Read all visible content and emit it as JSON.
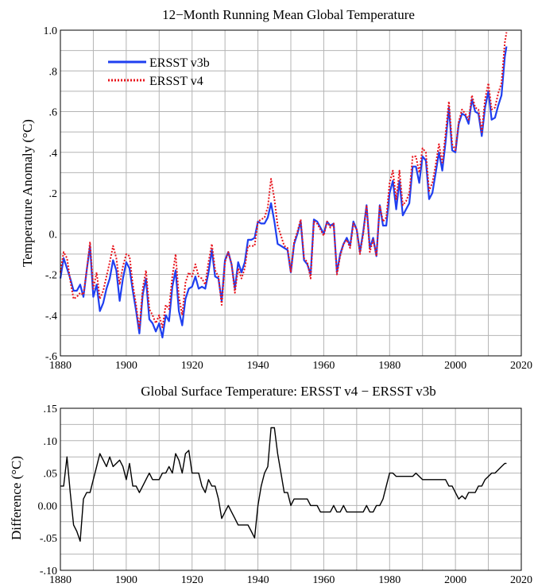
{
  "colors": {
    "v3b": "#1f3ff0",
    "v4": "#e8141c",
    "diff": "#000000",
    "grid": "#b4b4b4"
  },
  "chart_data": [
    {
      "type": "line",
      "title": "12−Month Running Mean Global Temperature",
      "xlabel": "",
      "ylabel": "Temperature Anomaly (°C)",
      "xlim": [
        1880,
        2020
      ],
      "ylim": [
        -0.6,
        1.0
      ],
      "xticks": [
        1880,
        1900,
        1920,
        1940,
        1960,
        1980,
        2000,
        2020
      ],
      "xtick_labels": [
        "1880",
        "1900",
        "1920",
        "1940",
        "1960",
        "1980",
        "2000",
        "2020"
      ],
      "yticks": [
        -0.6,
        -0.4,
        -0.2,
        0.0,
        0.2,
        0.4,
        0.6,
        0.8,
        1.0
      ],
      "ytick_labels": [
        "-.6",
        "-.4",
        "-.2",
        "0.",
        ".2",
        ".4",
        ".6",
        ".8",
        "1.0"
      ],
      "grid": true,
      "legend": "top-left",
      "series": [
        {
          "name": "ERSST v3b",
          "style": "solid",
          "x": [
            1880,
            1881,
            1882,
            1883,
            1884,
            1885,
            1886,
            1887,
            1888,
            1889,
            1890,
            1891,
            1892,
            1893,
            1894,
            1895,
            1896,
            1897,
            1898,
            1899,
            1900,
            1901,
            1902,
            1903,
            1904,
            1905,
            1906,
            1907,
            1908,
            1909,
            1910,
            1911,
            1912,
            1913,
            1914,
            1915,
            1916,
            1917,
            1918,
            1919,
            1920,
            1921,
            1922,
            1923,
            1924,
            1925,
            1926,
            1927,
            1928,
            1929,
            1930,
            1931,
            1932,
            1933,
            1934,
            1935,
            1936,
            1937,
            1938,
            1939,
            1940,
            1941,
            1942,
            1943,
            1944,
            1945,
            1946,
            1947,
            1948,
            1949,
            1950,
            1951,
            1952,
            1953,
            1954,
            1955,
            1956,
            1957,
            1958,
            1959,
            1960,
            1961,
            1962,
            1963,
            1964,
            1965,
            1966,
            1967,
            1968,
            1969,
            1970,
            1971,
            1972,
            1973,
            1974,
            1975,
            1976,
            1977,
            1978,
            1979,
            1980,
            1981,
            1982,
            1983,
            1984,
            1985,
            1986,
            1987,
            1988,
            1989,
            1990,
            1991,
            1992,
            1993,
            1994,
            1995,
            1996,
            1997,
            1998,
            1999,
            2000,
            2001,
            2002,
            2003,
            2004,
            2005,
            2006,
            2007,
            2008,
            2009,
            2010,
            2011,
            2012,
            2013,
            2014,
            2015,
            2015.5
          ],
          "values": [
            -0.22,
            -0.12,
            -0.17,
            -0.22,
            -0.28,
            -0.28,
            -0.25,
            -0.31,
            -0.18,
            -0.06,
            -0.31,
            -0.25,
            -0.38,
            -0.34,
            -0.27,
            -0.22,
            -0.13,
            -0.18,
            -0.33,
            -0.22,
            -0.14,
            -0.17,
            -0.28,
            -0.38,
            -0.49,
            -0.3,
            -0.22,
            -0.42,
            -0.44,
            -0.48,
            -0.44,
            -0.51,
            -0.4,
            -0.43,
            -0.26,
            -0.18,
            -0.38,
            -0.45,
            -0.32,
            -0.27,
            -0.26,
            -0.21,
            -0.27,
            -0.26,
            -0.27,
            -0.19,
            -0.08,
            -0.21,
            -0.22,
            -0.33,
            -0.13,
            -0.09,
            -0.15,
            -0.27,
            -0.14,
            -0.19,
            -0.14,
            -0.03,
            -0.03,
            -0.02,
            0.06,
            0.05,
            0.05,
            0.08,
            0.15,
            0.06,
            -0.05,
            -0.06,
            -0.07,
            -0.08,
            -0.19,
            -0.05,
            0.0,
            0.06,
            -0.13,
            -0.15,
            -0.2,
            0.07,
            0.06,
            0.03,
            0.0,
            0.06,
            0.04,
            0.05,
            -0.19,
            -0.1,
            -0.05,
            -0.02,
            -0.06,
            0.06,
            0.02,
            -0.09,
            0.01,
            0.14,
            -0.07,
            -0.02,
            -0.11,
            0.14,
            0.04,
            0.04,
            0.2,
            0.26,
            0.12,
            0.26,
            0.09,
            0.12,
            0.15,
            0.33,
            0.33,
            0.25,
            0.38,
            0.36,
            0.17,
            0.2,
            0.3,
            0.4,
            0.31,
            0.45,
            0.62,
            0.41,
            0.4,
            0.54,
            0.59,
            0.58,
            0.54,
            0.66,
            0.6,
            0.59,
            0.48,
            0.62,
            0.7,
            0.56,
            0.57,
            0.63,
            0.68,
            0.87,
            0.92
          ]
        },
        {
          "name": "ERSST v4",
          "style": "dotted",
          "x": [
            1880,
            1881,
            1882,
            1883,
            1884,
            1885,
            1886,
            1887,
            1888,
            1889,
            1890,
            1891,
            1892,
            1893,
            1894,
            1895,
            1896,
            1897,
            1898,
            1899,
            1900,
            1901,
            1902,
            1903,
            1904,
            1905,
            1906,
            1907,
            1908,
            1909,
            1910,
            1911,
            1912,
            1913,
            1914,
            1915,
            1916,
            1917,
            1918,
            1919,
            1920,
            1921,
            1922,
            1923,
            1924,
            1925,
            1926,
            1927,
            1928,
            1929,
            1930,
            1931,
            1932,
            1933,
            1934,
            1935,
            1936,
            1937,
            1938,
            1939,
            1940,
            1941,
            1942,
            1943,
            1944,
            1945,
            1946,
            1947,
            1948,
            1949,
            1950,
            1951,
            1952,
            1953,
            1954,
            1955,
            1956,
            1957,
            1958,
            1959,
            1960,
            1961,
            1962,
            1963,
            1964,
            1965,
            1966,
            1967,
            1968,
            1969,
            1970,
            1971,
            1972,
            1973,
            1974,
            1975,
            1976,
            1977,
            1978,
            1979,
            1980,
            1981,
            1982,
            1983,
            1984,
            1985,
            1986,
            1987,
            1988,
            1989,
            1990,
            1991,
            1992,
            1993,
            1994,
            1995,
            1996,
            1997,
            1998,
            1999,
            2000,
            2001,
            2002,
            2003,
            2004,
            2005,
            2006,
            2007,
            2008,
            2009,
            2010,
            2011,
            2012,
            2013,
            2014,
            2015,
            2015.5
          ],
          "values": [
            -0.19,
            -0.09,
            -0.12,
            -0.23,
            -0.32,
            -0.31,
            -0.29,
            -0.3,
            -0.18,
            -0.04,
            -0.27,
            -0.19,
            -0.32,
            -0.28,
            -0.21,
            -0.14,
            -0.06,
            -0.12,
            -0.25,
            -0.16,
            -0.1,
            -0.11,
            -0.25,
            -0.35,
            -0.47,
            -0.27,
            -0.18,
            -0.37,
            -0.4,
            -0.44,
            -0.4,
            -0.46,
            -0.35,
            -0.37,
            -0.21,
            -0.1,
            -0.31,
            -0.4,
            -0.24,
            -0.19,
            -0.21,
            -0.15,
            -0.21,
            -0.22,
            -0.25,
            -0.14,
            -0.05,
            -0.18,
            -0.21,
            -0.35,
            -0.14,
            -0.09,
            -0.15,
            -0.29,
            -0.17,
            -0.22,
            -0.17,
            -0.06,
            -0.06,
            -0.06,
            0.06,
            0.07,
            0.08,
            0.13,
            0.27,
            0.17,
            0.04,
            -0.01,
            -0.06,
            -0.07,
            -0.19,
            -0.04,
            0.01,
            0.07,
            -0.12,
            -0.14,
            -0.22,
            0.06,
            0.05,
            0.02,
            -0.01,
            0.06,
            0.03,
            0.05,
            -0.2,
            -0.11,
            -0.05,
            -0.03,
            -0.07,
            0.05,
            0.02,
            -0.1,
            0.0,
            0.14,
            -0.09,
            -0.03,
            -0.11,
            0.14,
            0.06,
            0.08,
            0.25,
            0.31,
            0.17,
            0.31,
            0.14,
            0.16,
            0.2,
            0.38,
            0.38,
            0.3,
            0.42,
            0.4,
            0.21,
            0.25,
            0.34,
            0.44,
            0.35,
            0.49,
            0.65,
            0.44,
            0.41,
            0.55,
            0.61,
            0.59,
            0.56,
            0.68,
            0.62,
            0.61,
            0.5,
            0.66,
            0.74,
            0.61,
            0.62,
            0.69,
            0.74,
            0.94,
            0.99
          ]
        }
      ]
    },
    {
      "type": "line",
      "title": "Global Surface Temperature: ERSST v4 − ERSST v3b",
      "xlabel": "",
      "ylabel": "Difference (°C)",
      "xlim": [
        1880,
        2020
      ],
      "ylim": [
        -0.1,
        0.15
      ],
      "xticks": [
        1880,
        1900,
        1920,
        1940,
        1960,
        1980,
        2000,
        2020
      ],
      "xtick_labels": [
        "1880",
        "1900",
        "1920",
        "1940",
        "1960",
        "1980",
        "2000",
        "2020"
      ],
      "yticks": [
        -0.1,
        -0.05,
        0.0,
        0.05,
        0.1,
        0.15
      ],
      "ytick_labels": [
        "-.10",
        "-.05",
        "0.00",
        ".05",
        ".10",
        ".15"
      ],
      "grid": true,
      "series": [
        {
          "style": "solid",
          "x": [
            1880,
            1881,
            1882,
            1883,
            1884,
            1885,
            1886,
            1887,
            1888,
            1889,
            1890,
            1891,
            1892,
            1893,
            1894,
            1895,
            1896,
            1897,
            1898,
            1899,
            1900,
            1901,
            1902,
            1903,
            1904,
            1905,
            1906,
            1907,
            1908,
            1909,
            1910,
            1911,
            1912,
            1913,
            1914,
            1915,
            1916,
            1917,
            1918,
            1919,
            1920,
            1921,
            1922,
            1923,
            1924,
            1925,
            1926,
            1927,
            1928,
            1929,
            1930,
            1931,
            1932,
            1933,
            1934,
            1935,
            1936,
            1937,
            1938,
            1939,
            1940,
            1941,
            1942,
            1943,
            1944,
            1945,
            1946,
            1947,
            1948,
            1949,
            1950,
            1951,
            1952,
            1953,
            1954,
            1955,
            1956,
            1957,
            1958,
            1959,
            1960,
            1961,
            1962,
            1963,
            1964,
            1965,
            1966,
            1967,
            1968,
            1969,
            1970,
            1971,
            1972,
            1973,
            1974,
            1975,
            1976,
            1977,
            1978,
            1979,
            1980,
            1981,
            1982,
            1983,
            1984,
            1985,
            1986,
            1987,
            1988,
            1989,
            1990,
            1991,
            1992,
            1993,
            1994,
            1995,
            1996,
            1997,
            1998,
            1999,
            2000,
            2001,
            2002,
            2003,
            2004,
            2005,
            2006,
            2007,
            2008,
            2009,
            2010,
            2011,
            2012,
            2013,
            2014,
            2015,
            2015.5
          ],
          "values": [
            0.03,
            0.03,
            0.075,
            0.02,
            -0.03,
            -0.04,
            -0.055,
            0.01,
            0.02,
            0.02,
            0.04,
            0.06,
            0.08,
            0.07,
            0.06,
            0.075,
            0.06,
            0.065,
            0.07,
            0.06,
            0.04,
            0.065,
            0.03,
            0.03,
            0.02,
            0.03,
            0.04,
            0.05,
            0.04,
            0.04,
            0.04,
            0.05,
            0.05,
            0.06,
            0.05,
            0.08,
            0.07,
            0.05,
            0.08,
            0.085,
            0.05,
            0.05,
            0.05,
            0.03,
            0.02,
            0.04,
            0.03,
            0.03,
            0.01,
            -0.02,
            -0.01,
            0.0,
            -0.01,
            -0.02,
            -0.03,
            -0.03,
            -0.03,
            -0.03,
            -0.04,
            -0.05,
            0.0,
            0.03,
            0.05,
            0.06,
            0.12,
            0.12,
            0.08,
            0.05,
            0.02,
            0.02,
            0.0,
            0.01,
            0.01,
            0.01,
            0.01,
            0.01,
            0.0,
            0.0,
            0.0,
            -0.01,
            -0.01,
            -0.01,
            -0.01,
            0.0,
            -0.01,
            -0.01,
            0.0,
            -0.01,
            -0.01,
            -0.01,
            -0.01,
            -0.01,
            -0.01,
            0.0,
            -0.01,
            -0.01,
            0.0,
            0.0,
            0.01,
            0.03,
            0.05,
            0.05,
            0.045,
            0.045,
            0.045,
            0.045,
            0.045,
            0.045,
            0.05,
            0.045,
            0.04,
            0.04,
            0.04,
            0.04,
            0.04,
            0.04,
            0.04,
            0.04,
            0.03,
            0.03,
            0.02,
            0.01,
            0.015,
            0.01,
            0.02,
            0.02,
            0.02,
            0.03,
            0.03,
            0.04,
            0.045,
            0.05,
            0.05,
            0.055,
            0.06,
            0.065,
            0.065
          ]
        }
      ]
    }
  ]
}
